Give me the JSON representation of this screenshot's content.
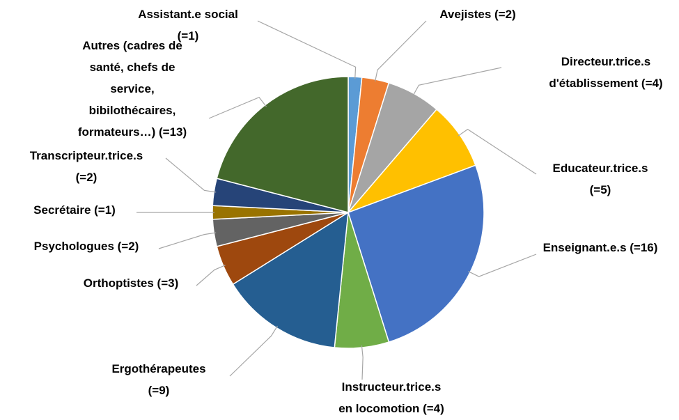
{
  "chart_data": {
    "type": "pie",
    "categories": [
      "Assistant.e social (=1)",
      "Avejistes (=2)",
      "Directeur.trice.s d'établissement (=4)",
      "Educateur.trice.s (=5)",
      "Enseignant.e.s (=16)",
      "Instructeur.trice.s en locomotion (=4)",
      "Ergothérapeutes (=9)",
      "Orthoptistes (=3)",
      "Psychologues (=2)",
      "Secrétaire (=1)",
      "Transcripteur.trice.s (=2)",
      "Autres (cadres de santé, chefs de service, bibilothécaires, formateurs…) (=13)"
    ],
    "values": [
      1,
      2,
      4,
      5,
      16,
      4,
      9,
      3,
      2,
      1,
      2,
      13
    ],
    "colors": [
      "#5b9bd5",
      "#ed7d31",
      "#a5a5a5",
      "#ffc000",
      "#4472c4",
      "#70ad47",
      "#255e91",
      "#9e480e",
      "#636363",
      "#997300",
      "#264478",
      "#43682b"
    ]
  }
}
